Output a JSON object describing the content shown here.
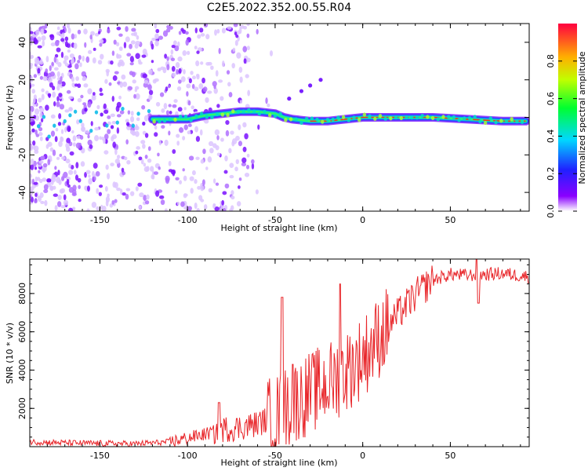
{
  "title": "C2E5.2022.352.00.55.R04",
  "chart_data": [
    {
      "type": "heatmap",
      "xlabel": "Height of straight line (km)",
      "ylabel": "Frequency (Hz)",
      "xlim": [
        -190,
        95
      ],
      "ylim": [
        -50,
        50
      ],
      "x_ticks": [
        -150,
        -100,
        -50,
        0,
        50
      ],
      "y_ticks": [
        -40,
        -20,
        0,
        20,
        40
      ],
      "colorbar": {
        "label": "Normalized spectral amplitude",
        "range": [
          0.0,
          1.0
        ],
        "ticks": [
          "0.0",
          "0.2",
          "0.4",
          "0.6",
          "0.8"
        ],
        "tick_values": [
          0.0,
          0.2,
          0.4,
          0.6,
          0.8
        ]
      },
      "ridge": [
        {
          "x": -185,
          "y": -5
        },
        {
          "x": -160,
          "y": -2
        },
        {
          "x": -140,
          "y": -1
        },
        {
          "x": -120,
          "y": -1
        },
        {
          "x": -100,
          "y": -1
        },
        {
          "x": -90,
          "y": 1
        },
        {
          "x": -80,
          "y": 2
        },
        {
          "x": -70,
          "y": 3
        },
        {
          "x": -60,
          "y": 3
        },
        {
          "x": -50,
          "y": 2
        },
        {
          "x": -45,
          "y": 0
        },
        {
          "x": -40,
          "y": -1
        },
        {
          "x": -30,
          "y": -2
        },
        {
          "x": -20,
          "y": -2
        },
        {
          "x": -10,
          "y": -1
        },
        {
          "x": 0,
          "y": 0
        },
        {
          "x": 10,
          "y": 0
        },
        {
          "x": 20,
          "y": 0
        },
        {
          "x": 40,
          "y": 0
        },
        {
          "x": 60,
          "y": -1
        },
        {
          "x": 80,
          "y": -2
        },
        {
          "x": 93,
          "y": -2
        }
      ],
      "side_branch": [
        {
          "x": -42,
          "y": 10
        },
        {
          "x": -35,
          "y": 14
        },
        {
          "x": -30,
          "y": 17
        },
        {
          "x": -24,
          "y": 20
        }
      ]
    },
    {
      "type": "line",
      "xlabel": "Height of straight line (km)",
      "ylabel": "SNR (10 * v/v)",
      "xlim": [
        -190,
        95
      ],
      "ylim": [
        0,
        9800
      ],
      "x_ticks": [
        -150,
        -100,
        -50,
        0,
        50
      ],
      "y_ticks": [
        2000,
        4000,
        6000,
        8000
      ],
      "series": [
        {
          "name": "SNR",
          "color": "#e8262a",
          "trend": [
            {
              "x": -190,
              "y": 250
            },
            {
              "x": -160,
              "y": 180
            },
            {
              "x": -130,
              "y": 150
            },
            {
              "x": -110,
              "y": 250
            },
            {
              "x": -100,
              "y": 450
            },
            {
              "x": -90,
              "y": 650
            },
            {
              "x": -80,
              "y": 900
            },
            {
              "x": -70,
              "y": 1000
            },
            {
              "x": -60,
              "y": 1200
            },
            {
              "x": -50,
              "y": 1600
            },
            {
              "x": -40,
              "y": 2300
            },
            {
              "x": -30,
              "y": 2800
            },
            {
              "x": -20,
              "y": 3300
            },
            {
              "x": -10,
              "y": 3900
            },
            {
              "x": 0,
              "y": 4700
            },
            {
              "x": 10,
              "y": 5800
            },
            {
              "x": 20,
              "y": 6900
            },
            {
              "x": 30,
              "y": 7900
            },
            {
              "x": 40,
              "y": 8700
            },
            {
              "x": 50,
              "y": 9000
            },
            {
              "x": 60,
              "y": 8950
            },
            {
              "x": 70,
              "y": 9000
            },
            {
              "x": 80,
              "y": 9050
            },
            {
              "x": 93,
              "y": 8900
            }
          ],
          "spikes": [
            {
              "x": -82,
              "y": 2300
            },
            {
              "x": -46,
              "y": 7800
            },
            {
              "x": -40,
              "y": 4300
            },
            {
              "x": -13,
              "y": 8500
            },
            {
              "x": 65,
              "y": 9800
            },
            {
              "x": 66,
              "y": 7500
            }
          ]
        }
      ]
    }
  ]
}
